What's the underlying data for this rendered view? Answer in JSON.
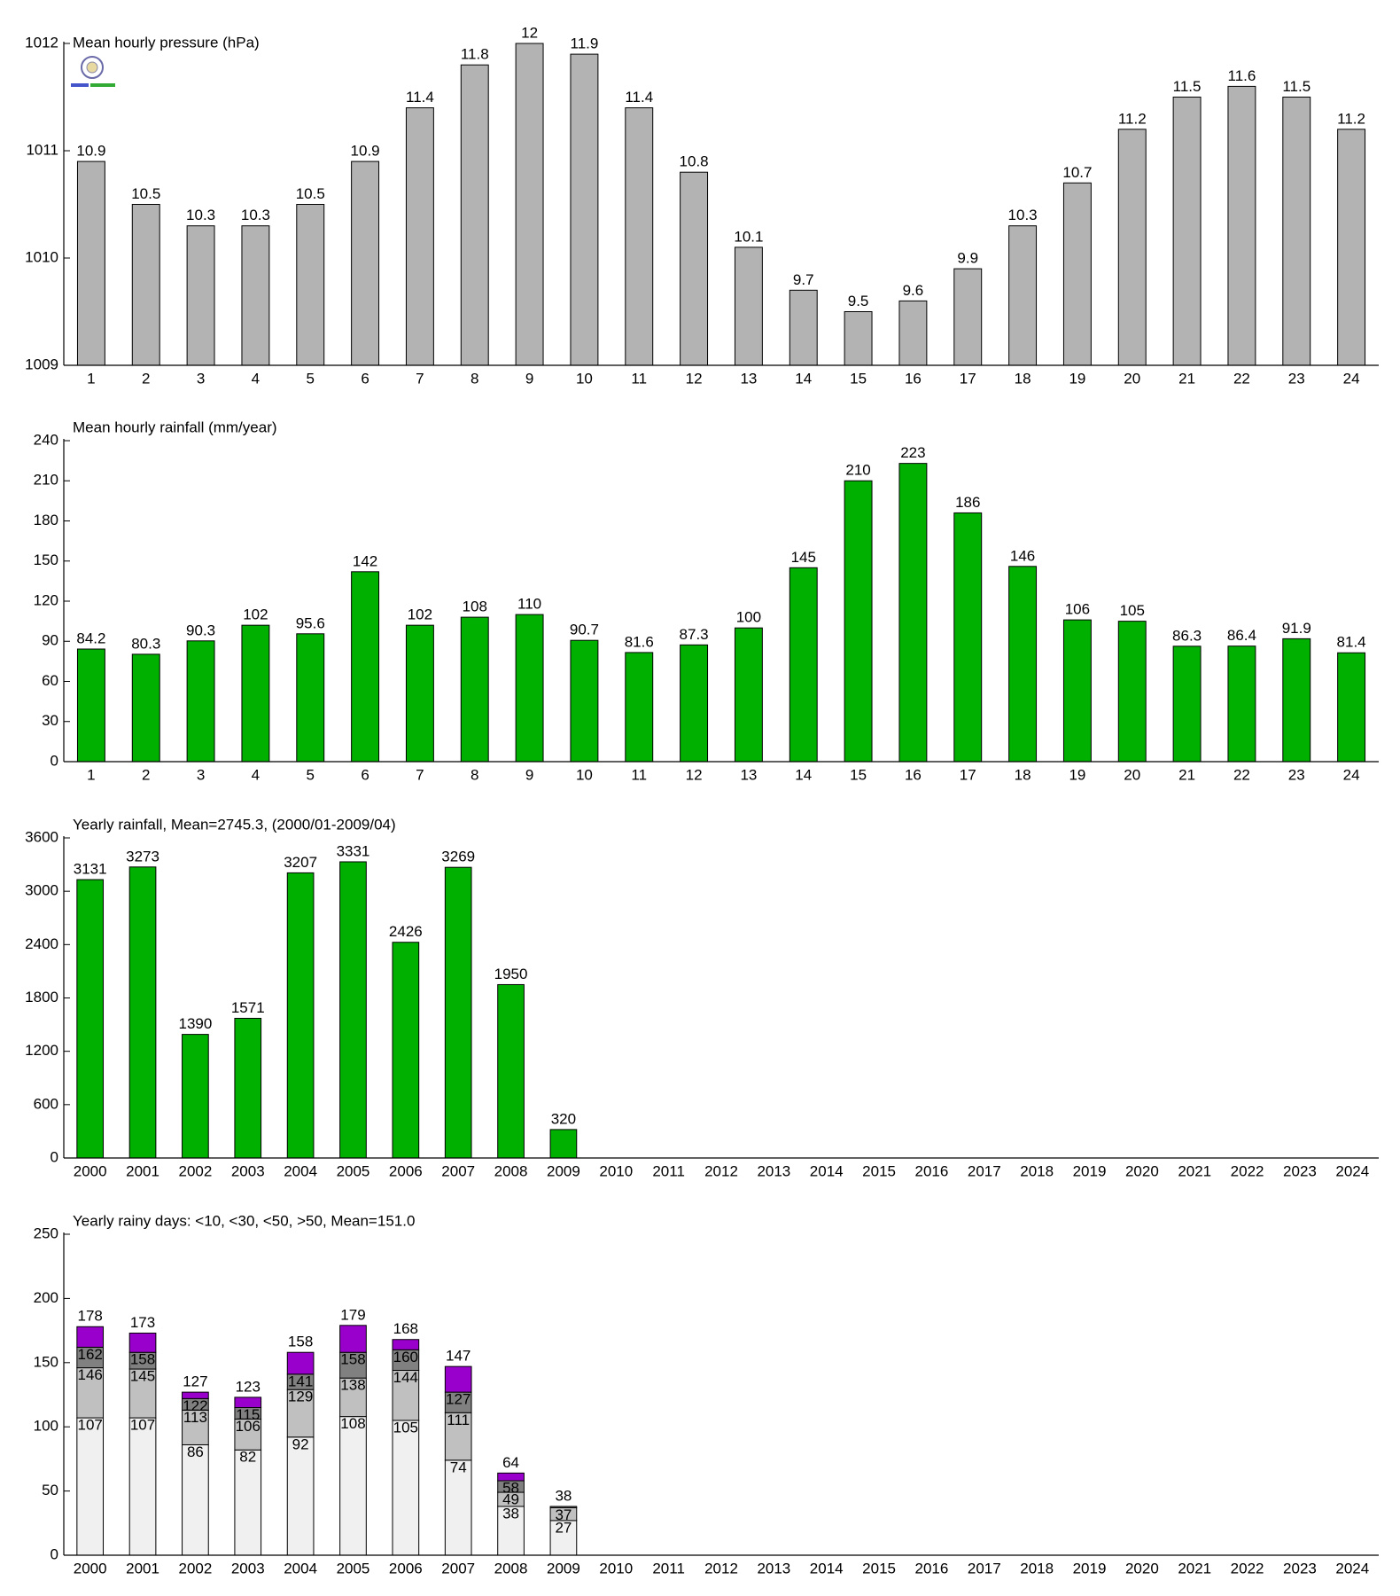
{
  "chart_data": [
    {
      "type": "bar",
      "title": "Mean hourly pressure (hPa)",
      "color": "#b3b3b3",
      "categories": [
        "1",
        "2",
        "3",
        "4",
        "5",
        "6",
        "7",
        "8",
        "9",
        "10",
        "11",
        "12",
        "13",
        "14",
        "15",
        "16",
        "17",
        "18",
        "19",
        "20",
        "21",
        "22",
        "23",
        "24"
      ],
      "values": [
        1010.9,
        1010.5,
        1010.3,
        1010.3,
        1010.5,
        1010.9,
        1011.4,
        1011.8,
        1012,
        1011.9,
        1011.4,
        1010.8,
        1010.1,
        1009.7,
        1009.5,
        1009.6,
        1009.9,
        1010.3,
        1010.7,
        1011.2,
        1011.5,
        1011.6,
        1011.5,
        1011.2
      ],
      "value_labels": [
        "10.9",
        "10.5",
        "10.3",
        "10.3",
        "10.5",
        "10.9",
        "11.4",
        "11.8",
        "12",
        "11.9",
        "11.4",
        "10.8",
        "10.1",
        "9.7",
        "9.5",
        "9.6",
        "9.9",
        "10.3",
        "10.7",
        "11.2",
        "11.5",
        "11.6",
        "11.5",
        "11.2"
      ],
      "ylim": [
        1009,
        1012
      ],
      "yticks": [
        1009,
        1010,
        1011,
        1012
      ]
    },
    {
      "type": "bar",
      "title": "Mean hourly rainfall (mm/year)",
      "color": "#00b000",
      "categories": [
        "1",
        "2",
        "3",
        "4",
        "5",
        "6",
        "7",
        "8",
        "9",
        "10",
        "11",
        "12",
        "13",
        "14",
        "15",
        "16",
        "17",
        "18",
        "19",
        "20",
        "21",
        "22",
        "23",
        "24"
      ],
      "values": [
        84.2,
        80.3,
        90.3,
        102,
        95.6,
        142,
        102,
        108,
        110,
        90.7,
        81.6,
        87.3,
        100,
        145,
        210,
        223,
        186,
        146,
        106,
        105,
        86.3,
        86.4,
        91.9,
        81.4
      ],
      "ylim": [
        0,
        240
      ],
      "yticks": [
        0,
        30,
        60,
        90,
        120,
        150,
        180,
        210,
        240
      ]
    },
    {
      "type": "bar",
      "title": "Yearly rainfall, Mean=2745.3, (2000/01-2009/04)",
      "color": "#00b000",
      "categories": [
        "2000",
        "2001",
        "2002",
        "2003",
        "2004",
        "2005",
        "2006",
        "2007",
        "2008",
        "2009",
        "2010",
        "2011",
        "2012",
        "2013",
        "2014",
        "2015",
        "2016",
        "2017",
        "2018",
        "2019",
        "2020",
        "2021",
        "2022",
        "2023",
        "2024"
      ],
      "values": [
        3131,
        3273,
        1390,
        1571,
        3207,
        3331,
        2426,
        3269,
        1950,
        320,
        null,
        null,
        null,
        null,
        null,
        null,
        null,
        null,
        null,
        null,
        null,
        null,
        null,
        null,
        null
      ],
      "ylim": [
        0,
        3600
      ],
      "yticks": [
        0,
        600,
        1200,
        1800,
        2400,
        3000,
        3600
      ]
    },
    {
      "type": "stacked_bar",
      "title": "Yearly rainy days: <10, <30, <50, >50, Mean=151.0",
      "categories": [
        "2000",
        "2001",
        "2002",
        "2003",
        "2004",
        "2005",
        "2006",
        "2007",
        "2008",
        "2009",
        "2010",
        "2011",
        "2012",
        "2013",
        "2014",
        "2015",
        "2016",
        "2017",
        "2018",
        "2019",
        "2020",
        "2021",
        "2022",
        "2023",
        "2024"
      ],
      "series": [
        {
          "color": "#f0f0f0",
          "values": [
            107,
            107,
            86,
            82,
            92,
            108,
            105,
            74,
            38,
            27,
            null,
            null,
            null,
            null,
            null,
            null,
            null,
            null,
            null,
            null,
            null,
            null,
            null,
            null,
            null
          ],
          "top_labels": [
            "107",
            "107",
            "86",
            "82",
            "92",
            "108",
            "105",
            "74",
            "38",
            "27",
            null,
            null,
            null,
            null,
            null,
            null,
            null,
            null,
            null,
            null,
            null,
            null,
            null,
            null,
            null
          ]
        },
        {
          "color": "#c0c0c0",
          "values": [
            39,
            38,
            27,
            24,
            37,
            30,
            39,
            37,
            11,
            10,
            null,
            null,
            null,
            null,
            null,
            null,
            null,
            null,
            null,
            null,
            null,
            null,
            null,
            null,
            null
          ],
          "top_labels": [
            "146",
            "145",
            "113",
            "106",
            "129",
            "138",
            "144",
            "111",
            "49",
            "37",
            null,
            null,
            null,
            null,
            null,
            null,
            null,
            null,
            null,
            null,
            null,
            null,
            null,
            null,
            null
          ]
        },
        {
          "color": "#808080",
          "values": [
            16,
            13,
            9,
            9,
            12,
            20,
            16,
            16,
            9,
            1,
            null,
            null,
            null,
            null,
            null,
            null,
            null,
            null,
            null,
            null,
            null,
            null,
            null,
            null,
            null
          ],
          "top_labels": [
            "162",
            "158",
            "122",
            "115",
            "141",
            "158",
            "160",
            "127",
            "58",
            null,
            null,
            null,
            null,
            null,
            null,
            null,
            null,
            null,
            null,
            null,
            null,
            null,
            null,
            null,
            null
          ]
        },
        {
          "color": "#9900cc",
          "values": [
            16,
            15,
            5,
            8,
            17,
            21,
            8,
            20,
            6,
            0,
            null,
            null,
            null,
            null,
            null,
            null,
            null,
            null,
            null,
            null,
            null,
            null,
            null,
            null,
            null
          ],
          "top_labels": [
            "178",
            "173",
            "127",
            "123",
            "158",
            "179",
            "168",
            "147",
            "64",
            "38",
            null,
            null,
            null,
            null,
            null,
            null,
            null,
            null,
            null,
            null,
            null,
            null,
            null,
            null,
            null
          ]
        }
      ],
      "ylim": [
        0,
        250
      ],
      "yticks": [
        0,
        50,
        100,
        150,
        200,
        250
      ]
    }
  ]
}
